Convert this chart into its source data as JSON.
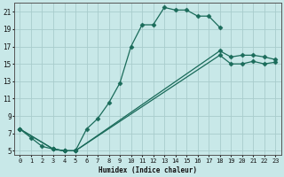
{
  "xlabel": "Humidex (Indice chaleur)",
  "xlim": [
    -0.5,
    23.5
  ],
  "ylim": [
    4.5,
    22.0
  ],
  "xticks": [
    0,
    1,
    2,
    3,
    4,
    5,
    6,
    7,
    8,
    9,
    10,
    11,
    12,
    13,
    14,
    15,
    16,
    17,
    18,
    19,
    20,
    21,
    22,
    23
  ],
  "yticks": [
    5,
    7,
    9,
    11,
    13,
    15,
    17,
    19,
    21
  ],
  "bg_color": "#c8e8e8",
  "line_color": "#1a6b5a",
  "grid_color": "#a8cccc",
  "line1_x": [
    0,
    1,
    2,
    3,
    4,
    5,
    6,
    7,
    8,
    9,
    10,
    11,
    12,
    13,
    14,
    15,
    16,
    17,
    18
  ],
  "line1_y": [
    7.5,
    6.5,
    5.5,
    5.2,
    5.0,
    5.0,
    7.5,
    8.7,
    10.5,
    12.8,
    17.0,
    19.5,
    19.5,
    21.5,
    21.2,
    21.2,
    20.5,
    20.5,
    19.2
  ],
  "line2_x": [
    0,
    3,
    4,
    5,
    18,
    19,
    20,
    21,
    22,
    23
  ],
  "line2_y": [
    7.5,
    5.2,
    5.0,
    5.0,
    16.5,
    15.8,
    16.0,
    16.0,
    15.8,
    15.5
  ],
  "line3_x": [
    0,
    3,
    4,
    5,
    18,
    19,
    20,
    21,
    22,
    23
  ],
  "line3_y": [
    7.5,
    5.2,
    5.0,
    5.0,
    16.0,
    15.0,
    15.0,
    15.3,
    15.0,
    15.2
  ]
}
